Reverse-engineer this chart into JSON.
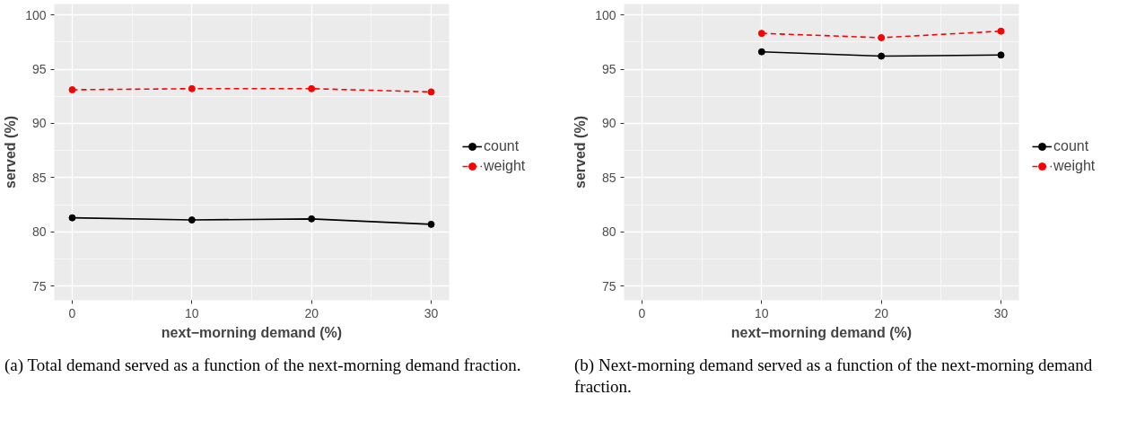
{
  "chart_data": [
    {
      "type": "line",
      "xlabel": "next−morning demand (%)",
      "ylabel": "served (%)",
      "x": [
        0,
        10,
        20,
        30
      ],
      "xlim": [
        -1.5,
        31.5
      ],
      "xticks": [
        0,
        10,
        20,
        30
      ],
      "ylim": [
        73.7,
        101
      ],
      "yticks": [
        75,
        80,
        85,
        90,
        95,
        100
      ],
      "grid": true,
      "legend": "right",
      "marker": "circle",
      "series": [
        {
          "name": "count",
          "color": "#000000",
          "line_style": "solid",
          "values": [
            81.3,
            81.1,
            81.2,
            80.7
          ]
        },
        {
          "name": "weight",
          "color": "#ff0000",
          "line_style": "dashed",
          "values": [
            93.1,
            93.2,
            93.2,
            92.9
          ]
        }
      ],
      "annotations": [
        "(a) Total demand served as a function of the next-morning demand fraction."
      ]
    },
    {
      "type": "line",
      "xlabel": "next−morning demand (%)",
      "ylabel": "served (%)",
      "x": [
        10,
        20,
        30
      ],
      "xlim": [
        -1.5,
        31.5
      ],
      "xticks": [
        0,
        10,
        20,
        30
      ],
      "ylim": [
        73.7,
        101
      ],
      "yticks": [
        75,
        80,
        85,
        90,
        95,
        100
      ],
      "grid": true,
      "legend": "right",
      "marker": "circle",
      "series": [
        {
          "name": "count",
          "color": "#000000",
          "line_style": "solid",
          "values": [
            96.6,
            96.2,
            96.3
          ]
        },
        {
          "name": "weight",
          "color": "#ff0000",
          "line_style": "dashed",
          "values": [
            98.3,
            97.9,
            98.5
          ]
        }
      ],
      "annotations": [
        "(b) Next-morning demand served as a function of the next-morning demand fraction."
      ]
    }
  ]
}
